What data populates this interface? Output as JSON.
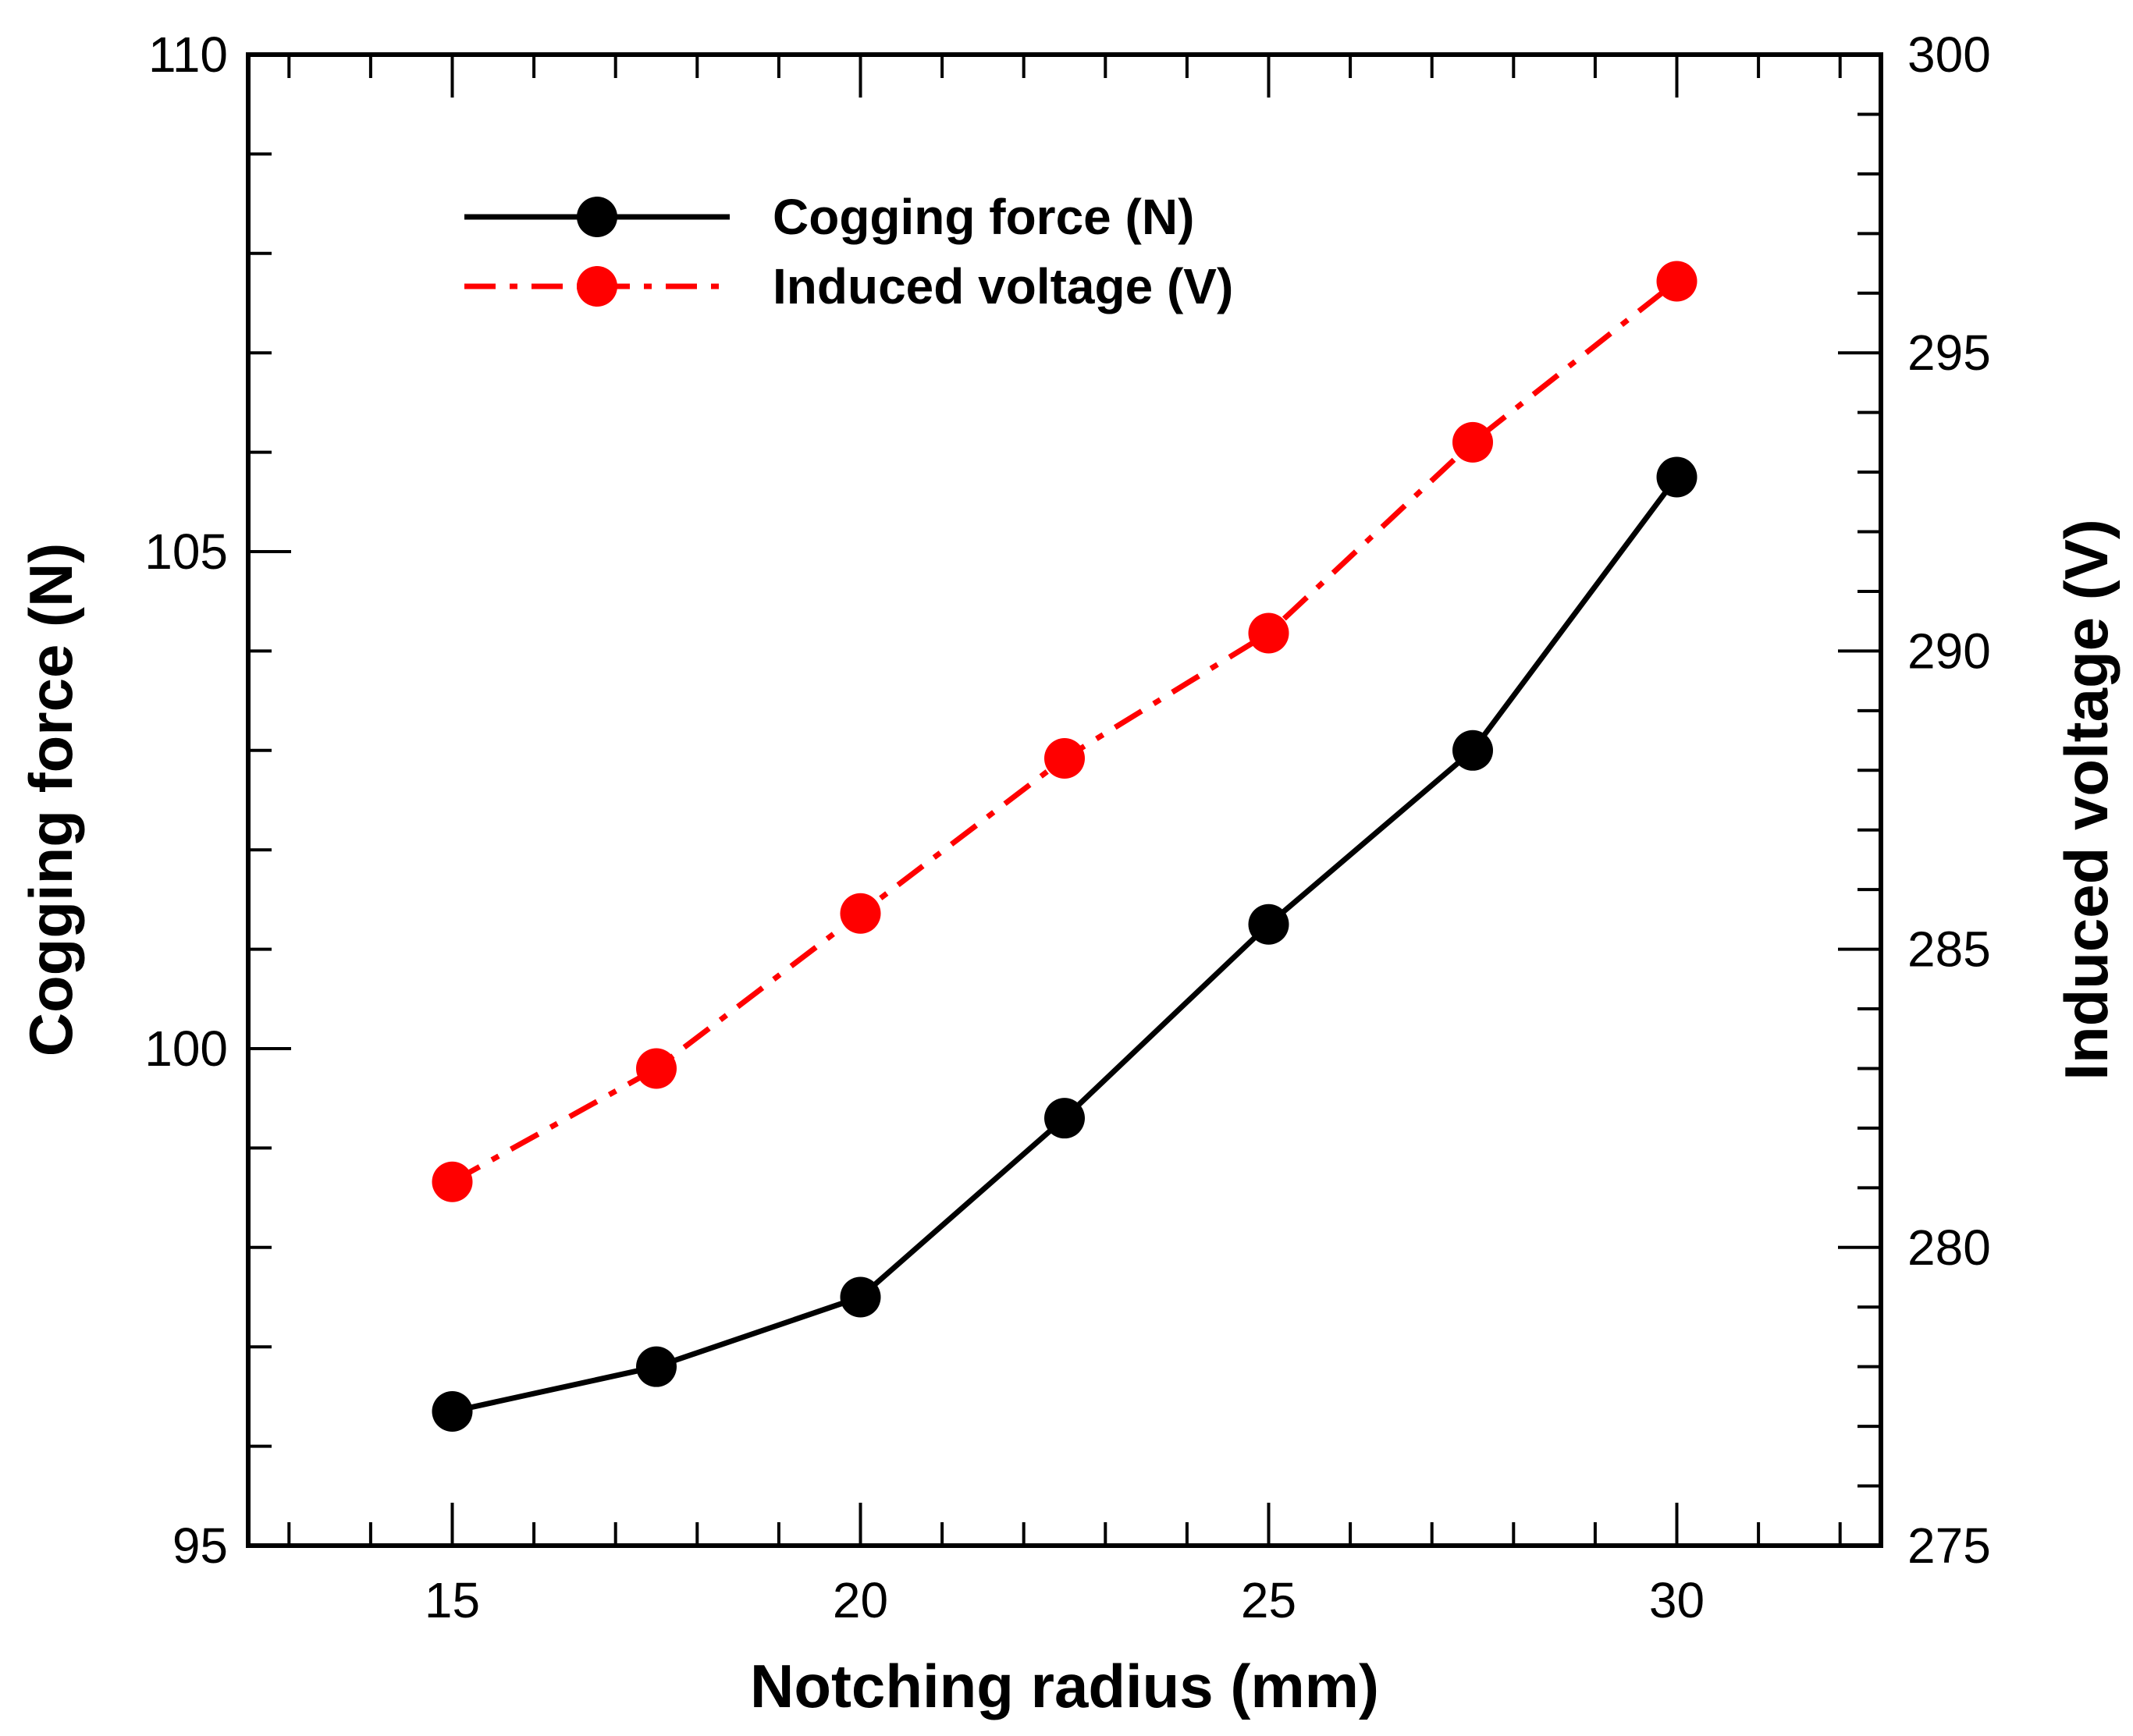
{
  "chart_data": {
    "type": "line",
    "x": [
      15,
      17.5,
      20,
      22.5,
      25,
      27.5,
      30
    ],
    "xlim": [
      12.5,
      32.5
    ],
    "xticks": [
      15,
      20,
      25,
      30
    ],
    "xtick_labels": [
      "15",
      "20",
      "25",
      "30"
    ],
    "xlabel": "Notching radius (mm)",
    "y_left": {
      "label": "Cogging force (N)",
      "lim": [
        95,
        110
      ],
      "ticks": [
        95,
        100,
        105,
        110
      ],
      "tick_labels": [
        "95",
        "100",
        "105",
        "110"
      ]
    },
    "y_right": {
      "label": "Induced voltage (V)",
      "lim": [
        275,
        300
      ],
      "ticks": [
        275,
        280,
        285,
        290,
        295,
        300
      ],
      "tick_labels": [
        "275",
        "280",
        "285",
        "290",
        "295",
        "300"
      ]
    },
    "series": [
      {
        "name": "Cogging force (N)",
        "axis": "left",
        "color": "#000000",
        "line_style": "solid",
        "values": [
          96.35,
          96.8,
          97.5,
          99.3,
          101.25,
          103.0,
          105.75
        ]
      },
      {
        "name": "Induced voltage (V)",
        "axis": "right",
        "color": "#ff0000",
        "line_style": "dash-dot",
        "values": [
          281.1,
          283.0,
          285.6,
          288.2,
          290.3,
          293.5,
          296.2
        ]
      }
    ],
    "legend": {
      "position": "top-left",
      "entries": [
        "Cogging force (N)",
        "Induced voltage (V)"
      ]
    },
    "grid": false
  }
}
